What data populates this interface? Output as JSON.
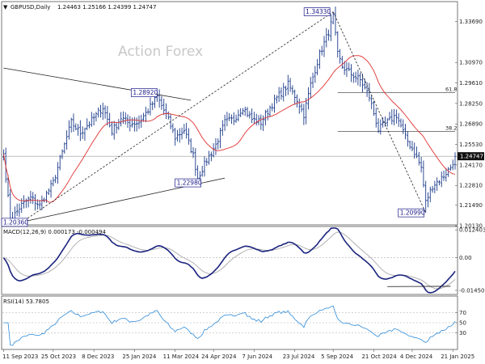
{
  "chart_data": {
    "type": "candlestick",
    "symbol_label": "GBPUSD,Daily",
    "ohlc_label": "1.24463 1.25166 1.24399 1.24747",
    "watermark": "Action Forex",
    "price_pane": {
      "ylim": [
        1.203,
        1.349
      ],
      "yticks": [
        "1.33690",
        "1.30970",
        "1.29610",
        "1.28250",
        "1.26890",
        "1.25530",
        "1.24170",
        "1.22810",
        "1.21490",
        "1.20130"
      ],
      "current_price": "1.24747",
      "sma": {
        "color": "#e03030"
      }
    },
    "annotations": [
      {
        "label": "1.34330",
        "index": 146,
        "price": 1.3433
      },
      {
        "label": "1.28920",
        "index": 68,
        "price": 1.2892
      },
      {
        "label": "1.22980",
        "index": 86,
        "price": 1.2298
      },
      {
        "label": "1.20990",
        "index": 187,
        "price": 1.2099
      },
      {
        "label": "1.20360",
        "index": 3,
        "price": 1.2036
      }
    ],
    "fib_levels": [
      {
        "label": "61.8",
        "price": 1.2897
      },
      {
        "label": "38.2",
        "price": 1.2639
      }
    ],
    "trendlines": [
      {
        "style": "solid",
        "from": [
          0,
          1.306
        ],
        "to": [
          83,
          1.2846
        ]
      },
      {
        "style": "solid",
        "from": [
          8,
          1.2038
        ],
        "to": [
          98,
          1.233
        ]
      },
      {
        "style": "dashed",
        "from": [
          8,
          1.2036
        ],
        "to": [
          146,
          1.3433
        ]
      },
      {
        "style": "dashed",
        "from": [
          146,
          1.3433
        ],
        "to": [
          187,
          1.2099
        ]
      }
    ],
    "macd_pane": {
      "label": "MACD(12,26,9) 0.000173 -0.000494",
      "ylim": [
        -0.0156,
        0.0132
      ],
      "yticks": [
        "0.012403",
        "0.00",
        "-0.014502"
      ],
      "support_line": {
        "from": [
          170,
          -0.0128
        ],
        "to": [
          198,
          -0.0127
        ]
      }
    },
    "rsi_pane": {
      "label": "RSI(14) 53.7805",
      "ylim": [
        0,
        100
      ],
      "yticks": [
        "70",
        "50",
        "30"
      ]
    },
    "x_ticks": [
      {
        "label": "11 Sep 2023",
        "index": 0
      },
      {
        "label": "25 Oct 2023",
        "index": 22
      },
      {
        "label": "8 Dec 2023",
        "index": 40
      },
      {
        "label": "25 Jan 2024",
        "index": 58
      },
      {
        "label": "11 Mar 2024",
        "index": 76
      },
      {
        "label": "24 Apr 2024",
        "index": 93
      },
      {
        "label": "7 Jun 2024",
        "index": 111
      },
      {
        "label": "23 Jul 2024",
        "index": 129
      },
      {
        "label": "5 Sep 2024",
        "index": 146
      },
      {
        "label": "21 Oct 2024",
        "index": 164
      },
      {
        "label": "4 Dec 2024",
        "index": 181
      },
      {
        "label": "21 Jan 2025",
        "index": 199
      }
    ],
    "close_anchors": [
      [
        0,
        1.249
      ],
      [
        3,
        1.205
      ],
      [
        8,
        1.215
      ],
      [
        12,
        1.22
      ],
      [
        16,
        1.215
      ],
      [
        22,
        1.23
      ],
      [
        26,
        1.25
      ],
      [
        30,
        1.27
      ],
      [
        34,
        1.263
      ],
      [
        40,
        1.273
      ],
      [
        44,
        1.28
      ],
      [
        48,
        1.264
      ],
      [
        52,
        1.273
      ],
      [
        56,
        1.269
      ],
      [
        60,
        1.27
      ],
      [
        64,
        1.278
      ],
      [
        68,
        1.287
      ],
      [
        72,
        1.275
      ],
      [
        76,
        1.26
      ],
      [
        80,
        1.265
      ],
      [
        84,
        1.248
      ],
      [
        86,
        1.233
      ],
      [
        90,
        1.245
      ],
      [
        94,
        1.255
      ],
      [
        98,
        1.27
      ],
      [
        102,
        1.272
      ],
      [
        106,
        1.28
      ],
      [
        110,
        1.272
      ],
      [
        114,
        1.27
      ],
      [
        118,
        1.28
      ],
      [
        122,
        1.288
      ],
      [
        126,
        1.295
      ],
      [
        130,
        1.285
      ],
      [
        133,
        1.275
      ],
      [
        136,
        1.295
      ],
      [
        140,
        1.315
      ],
      [
        144,
        1.33
      ],
      [
        146,
        1.34
      ],
      [
        148,
        1.315
      ],
      [
        150,
        1.307
      ],
      [
        154,
        1.302
      ],
      [
        158,
        1.298
      ],
      [
        162,
        1.287
      ],
      [
        166,
        1.265
      ],
      [
        170,
        1.27
      ],
      [
        174,
        1.275
      ],
      [
        178,
        1.26
      ],
      [
        182,
        1.25
      ],
      [
        185,
        1.24
      ],
      [
        187,
        1.217
      ],
      [
        190,
        1.228
      ],
      [
        194,
        1.233
      ],
      [
        198,
        1.24
      ],
      [
        200,
        1.2474
      ]
    ]
  }
}
